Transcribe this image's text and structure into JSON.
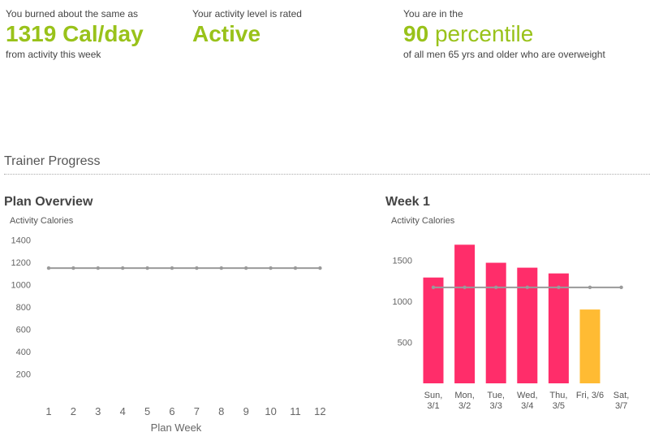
{
  "stats": [
    {
      "pre": "You burned about the same as",
      "value": "1319",
      "unit": "Cal/day",
      "post": "from activity this week"
    },
    {
      "pre": "Your activity level is rated",
      "value": "Active",
      "unit": "",
      "post": ""
    },
    {
      "pre": "You are in the",
      "value": "90",
      "unit": "percentile",
      "post": "of all men 65 yrs and older who are overweight"
    }
  ],
  "section": {
    "title": "Trainer Progress"
  },
  "colors": {
    "accent": "#99c21a",
    "bar": "#ff2d6a",
    "bar_highlight": "#ffbb33",
    "target_line": "#9a9a9a"
  },
  "chart_data": [
    {
      "type": "line",
      "title": "Plan Overview",
      "ylabel": "Activity Calories",
      "xlabel": "Plan Week",
      "ylim": [
        0,
        1500
      ],
      "yticks": [
        200,
        400,
        600,
        800,
        1000,
        1200,
        1400
      ],
      "x": [
        "1",
        "2",
        "3",
        "4",
        "5",
        "6",
        "7",
        "8",
        "9",
        "10",
        "11",
        "12"
      ],
      "series": [
        {
          "values": [
            1150,
            1150,
            1150,
            1150,
            1150,
            1150,
            1150,
            1150,
            1150,
            1150,
            1150,
            1150
          ]
        }
      ],
      "grid": false
    },
    {
      "type": "bar",
      "title": "Week 1",
      "ylabel": "Activity Calories",
      "xlabel": "",
      "ylim": [
        0,
        2000
      ],
      "yticks": [
        500,
        1000,
        1500
      ],
      "categories": [
        [
          "Sun,",
          "3/1"
        ],
        [
          "Mon,",
          "3/2"
        ],
        [
          "Tue,",
          "3/3"
        ],
        [
          "Wed,",
          "3/4"
        ],
        [
          "Thu,",
          "3/5"
        ],
        [
          "Fri, 3/6"
        ],
        [
          "Sat,",
          "3/7"
        ]
      ],
      "values": [
        1290,
        1690,
        1470,
        1410,
        1340,
        900,
        null
      ],
      "highlight_index": 5,
      "target": {
        "values": [
          1170,
          1170,
          1170,
          1170,
          1170,
          1170,
          1170
        ]
      },
      "grid": false
    }
  ]
}
